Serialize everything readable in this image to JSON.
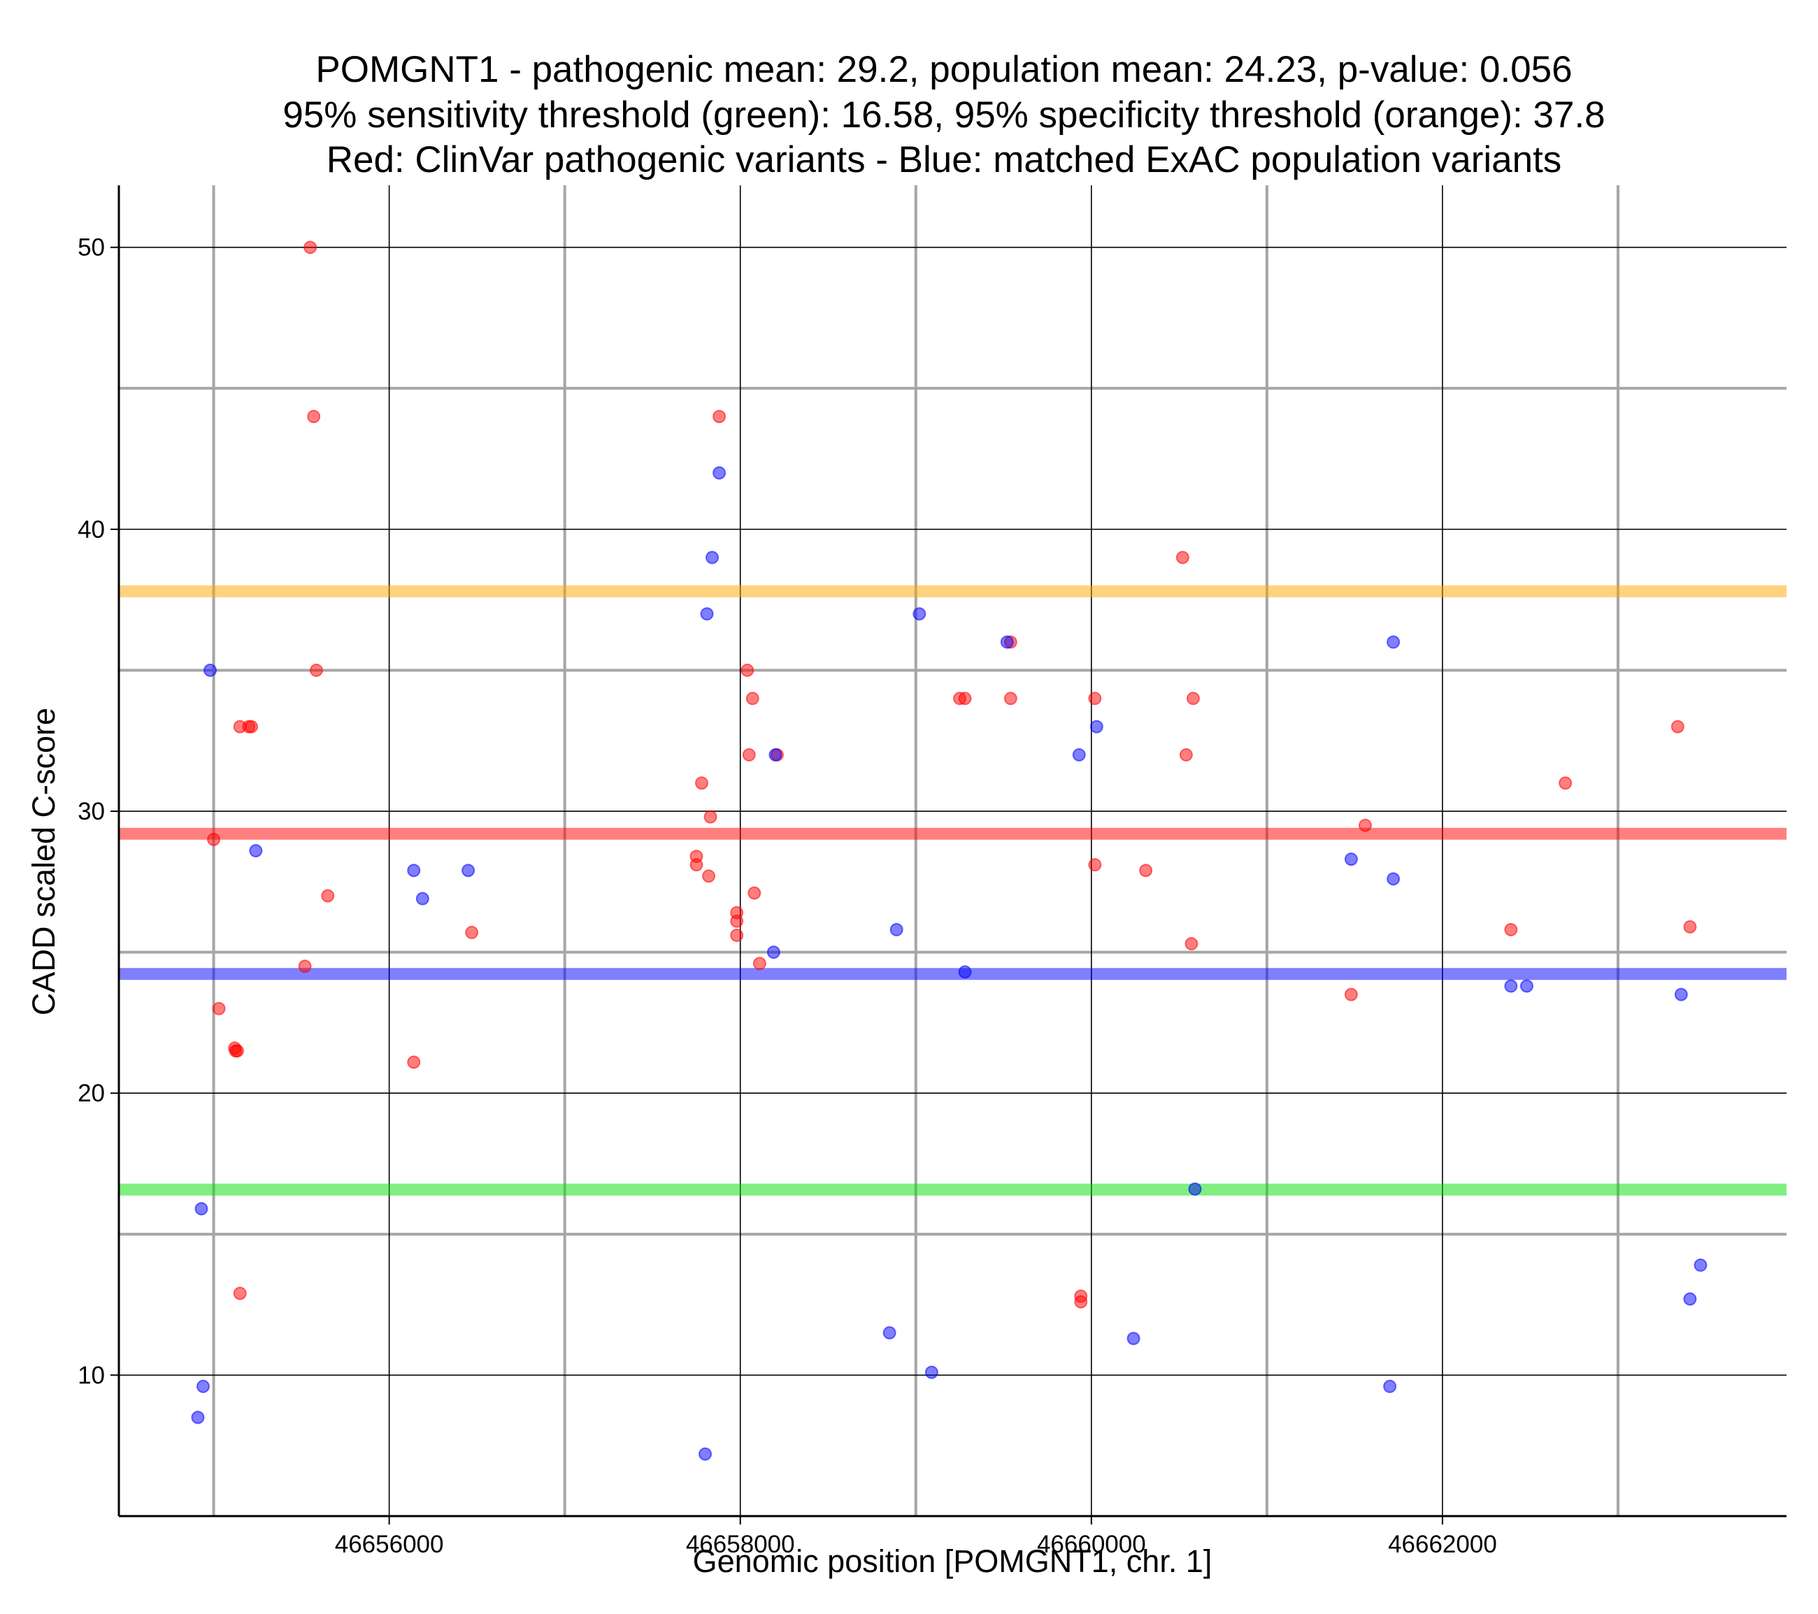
{
  "chart_data": {
    "type": "scatter",
    "title": [
      "POMGNT1 - pathogenic mean: 29.2, population mean: 24.23, p-value: 0.056",
      "95% sensitivity threshold (green): 16.58, 95% specificity threshold (orange): 37.8",
      "Red: ClinVar pathogenic variants - Blue: matched ExAC population variants"
    ],
    "xlabel": "Genomic position [POMGNT1, chr. 1]",
    "ylabel": "CADD scaled C-score",
    "xlim": [
      46654460,
      46663960
    ],
    "ylim": [
      5,
      52.2
    ],
    "x_ticks": [
      46656000,
      46658000,
      46660000,
      46662000
    ],
    "x_tick_labels": [
      "46656000",
      "46658000",
      "46660000",
      "46662000"
    ],
    "x_minor_grid": [
      46655000,
      46657000,
      46659000,
      46661000,
      46663000
    ],
    "y_ticks": [
      10,
      20,
      30,
      40,
      50
    ],
    "y_tick_labels": [
      "10",
      "20",
      "30",
      "40",
      "50"
    ],
    "y_minor_grid": [
      15,
      25,
      35,
      45
    ],
    "grid": true,
    "colors": {
      "pathogenic": "#ff0000",
      "population": "#0000ff",
      "sensitivity": "#00e000",
      "specificity": "#ffa500",
      "major_grid": "#000000",
      "minor_grid": "#a6a6a6"
    },
    "hlines": [
      {
        "name": "pathogenic mean",
        "y": 29.2,
        "color": "#ff0000"
      },
      {
        "name": "population mean",
        "y": 24.23,
        "color": "#0000ff"
      },
      {
        "name": "95% sensitivity threshold",
        "y": 16.58,
        "color": "#00e000"
      },
      {
        "name": "95% specificity threshold",
        "y": 37.8,
        "color": "#ffa500"
      }
    ],
    "series": [
      {
        "name": "ClinVar pathogenic variants",
        "color": "#ff0000",
        "points": [
          [
            46655550,
            50
          ],
          [
            46655570,
            44
          ],
          [
            46655585,
            35
          ],
          [
            46655150,
            33
          ],
          [
            46655200,
            33
          ],
          [
            46655215,
            33
          ],
          [
            46655000,
            29
          ],
          [
            46655030,
            23
          ],
          [
            46655120,
            21.6
          ],
          [
            46655125,
            21.5
          ],
          [
            46655135,
            21.5
          ],
          [
            46655520,
            24.5
          ],
          [
            46655650,
            27
          ],
          [
            46655150,
            12.9
          ],
          [
            46656140,
            21.1
          ],
          [
            46656470,
            25.7
          ],
          [
            46657880,
            44
          ],
          [
            46657780,
            31
          ],
          [
            46657830,
            29.8
          ],
          [
            46657750,
            28.4
          ],
          [
            46657750,
            28.1
          ],
          [
            46657820,
            27.7
          ],
          [
            46658040,
            35
          ],
          [
            46658070,
            34
          ],
          [
            46658050,
            32
          ],
          [
            46658210,
            32
          ],
          [
            46658080,
            27.1
          ],
          [
            46657980,
            26.4
          ],
          [
            46657980,
            26.1
          ],
          [
            46657980,
            25.6
          ],
          [
            46658110,
            24.6
          ],
          [
            46659250,
            34
          ],
          [
            46659280,
            34
          ],
          [
            46659540,
            36
          ],
          [
            46659540,
            34
          ],
          [
            46660520,
            39
          ],
          [
            46660020,
            34
          ],
          [
            46660580,
            34
          ],
          [
            46660540,
            32
          ],
          [
            46660020,
            28.1
          ],
          [
            46660310,
            27.9
          ],
          [
            46660570,
            25.3
          ],
          [
            46659940,
            12.8
          ],
          [
            46659940,
            12.6
          ],
          [
            46661560,
            29.5
          ],
          [
            46661480,
            23.5
          ],
          [
            46662700,
            31
          ],
          [
            46662390,
            25.8
          ],
          [
            46663340,
            33
          ],
          [
            46663410,
            25.9
          ]
        ]
      },
      {
        "name": "matched ExAC population variants",
        "color": "#0000ff",
        "points": [
          [
            46654980,
            35
          ],
          [
            46655240,
            28.6
          ],
          [
            46654930,
            15.9
          ],
          [
            46654940,
            9.6
          ],
          [
            46654910,
            8.5
          ],
          [
            46656140,
            27.9
          ],
          [
            46656190,
            26.9
          ],
          [
            46656450,
            27.9
          ],
          [
            46657880,
            42
          ],
          [
            46657840,
            39
          ],
          [
            46657810,
            37
          ],
          [
            46658200,
            32
          ],
          [
            46658190,
            25
          ],
          [
            46657800,
            7.2
          ],
          [
            46659020,
            37
          ],
          [
            46659520,
            36
          ],
          [
            46658890,
            25.8
          ],
          [
            46659280,
            24.3
          ],
          [
            46658850,
            11.5
          ],
          [
            46659090,
            10.1
          ],
          [
            46659930,
            32
          ],
          [
            46660030,
            33
          ],
          [
            46660590,
            16.6
          ],
          [
            46660240,
            11.3
          ],
          [
            46661720,
            36
          ],
          [
            46661480,
            28.3
          ],
          [
            46661720,
            27.6
          ],
          [
            46661700,
            9.6
          ],
          [
            46662390,
            23.8
          ],
          [
            46662480,
            23.8
          ],
          [
            46663360,
            23.5
          ],
          [
            46663470,
            13.9
          ],
          [
            46663410,
            12.7
          ]
        ]
      }
    ]
  }
}
